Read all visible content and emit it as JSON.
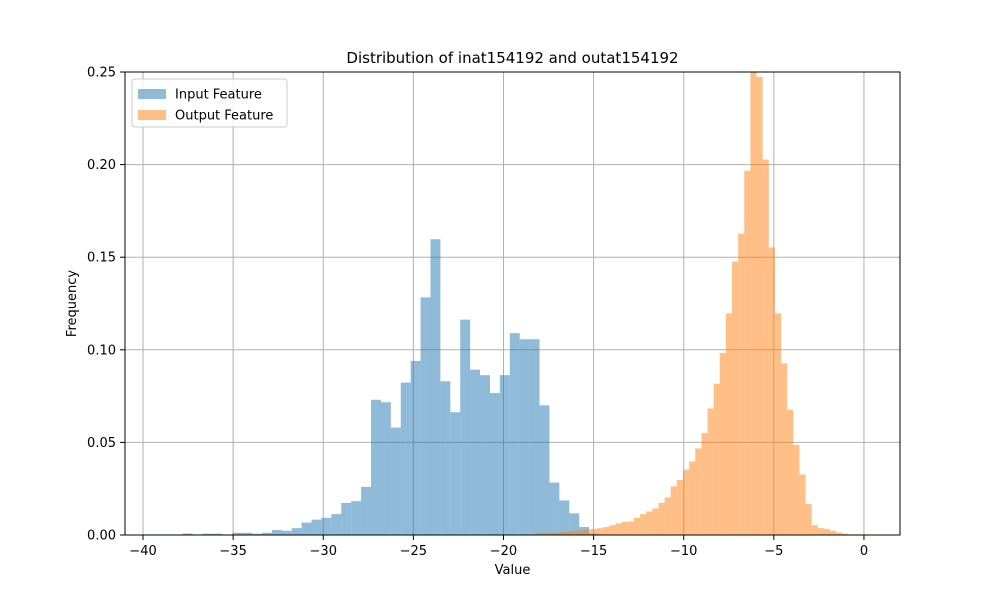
{
  "chart_data": {
    "type": "bar",
    "title": "Distribution of inat154192 and outat154192",
    "xlabel": "Value",
    "ylabel": "Frequency",
    "xlim": [
      -41.0,
      2.0
    ],
    "ylim": [
      0,
      0.25
    ],
    "grid": true,
    "legend_position": "top-left",
    "x_ticks": [
      -40,
      -35,
      -30,
      -25,
      -20,
      -15,
      -10,
      -5,
      0
    ],
    "x_tick_labels": [
      "−40",
      "−35",
      "−30",
      "−25",
      "−20",
      "−15",
      "−10",
      "−5",
      "0"
    ],
    "y_ticks": [
      0,
      0.05,
      0.1,
      0.15,
      0.2,
      0.25
    ],
    "y_tick_labels": [
      "0.00",
      "0.05",
      "0.10",
      "0.15",
      "0.20",
      "0.25"
    ],
    "series": [
      {
        "name": "Input Feature",
        "color": "#1f77b4",
        "opacity": 0.5,
        "bin_edges": [
          -40.0,
          -39.45,
          -38.9,
          -38.35,
          -37.8,
          -37.25,
          -36.7,
          -36.15,
          -35.6,
          -35.05,
          -34.5,
          -33.95,
          -33.4,
          -32.85,
          -32.3,
          -31.75,
          -31.2,
          -30.65,
          -30.1,
          -29.55,
          -29.0,
          -28.45,
          -27.9,
          -27.35,
          -26.8,
          -26.25,
          -25.7,
          -25.15,
          -24.6,
          -24.05,
          -23.5,
          -22.95,
          -22.4,
          -21.85,
          -21.3,
          -20.75,
          -20.2,
          -19.65,
          -19.1,
          -18.55,
          -18.0,
          -17.45,
          -16.9,
          -16.35,
          -15.8,
          -15.25,
          -14.7
        ],
        "values": [
          0.0003,
          0.0003,
          0.0003,
          0.0003,
          0.0008,
          0.0003,
          0.0007,
          0.0007,
          0.0003,
          0.0012,
          0.0012,
          0.0007,
          0.0012,
          0.0027,
          0.0023,
          0.0037,
          0.0067,
          0.0083,
          0.0093,
          0.0113,
          0.0173,
          0.0183,
          0.026,
          0.073,
          0.0717,
          0.058,
          0.0823,
          0.094,
          0.1283,
          0.1597,
          0.083,
          0.0663,
          0.1163,
          0.0893,
          0.0863,
          0.0767,
          0.0863,
          0.109,
          0.1057,
          0.1057,
          0.07,
          0.0283,
          0.0187,
          0.0117,
          0.0043,
          0.0007
        ]
      },
      {
        "name": "Output Feature",
        "color": "#ff7f0e",
        "opacity": 0.5,
        "bin_edges": [
          -18.2,
          -17.86,
          -17.52,
          -17.18,
          -16.84,
          -16.5,
          -16.16,
          -15.82,
          -15.48,
          -15.14,
          -14.8,
          -14.46,
          -14.12,
          -13.78,
          -13.44,
          -13.1,
          -12.76,
          -12.42,
          -12.08,
          -11.74,
          -11.4,
          -11.06,
          -10.72,
          -10.38,
          -10.04,
          -9.7,
          -9.36,
          -9.02,
          -8.68,
          -8.34,
          -8.0,
          -7.66,
          -7.32,
          -6.98,
          -6.64,
          -6.3,
          -5.96,
          -5.62,
          -5.28,
          -4.94,
          -4.6,
          -4.26,
          -3.92,
          -3.58,
          -3.24,
          -2.9,
          -2.56,
          -2.22,
          -1.88,
          -1.54,
          -1.2,
          -0.86,
          -0.52,
          -0.18,
          0.16,
          0.5
        ],
        "values": [
          0.001,
          0.0012,
          0.0012,
          0.0013,
          0.0017,
          0.002,
          0.0023,
          0.0027,
          0.003,
          0.0033,
          0.0037,
          0.0043,
          0.0053,
          0.0063,
          0.007,
          0.0073,
          0.0093,
          0.0113,
          0.0127,
          0.0143,
          0.0173,
          0.0203,
          0.0263,
          0.0297,
          0.0353,
          0.0397,
          0.0467,
          0.055,
          0.0683,
          0.0817,
          0.0983,
          0.1197,
          0.1477,
          0.1627,
          0.1967,
          0.2563,
          0.2473,
          0.2027,
          0.1553,
          0.1197,
          0.0927,
          0.0677,
          0.0487,
          0.0327,
          0.0167,
          0.0053,
          0.0037,
          0.0033,
          0.0023,
          0.0013,
          0.0007,
          0.0003,
          0.0003,
          0.0003,
          0.0003
        ]
      }
    ]
  }
}
